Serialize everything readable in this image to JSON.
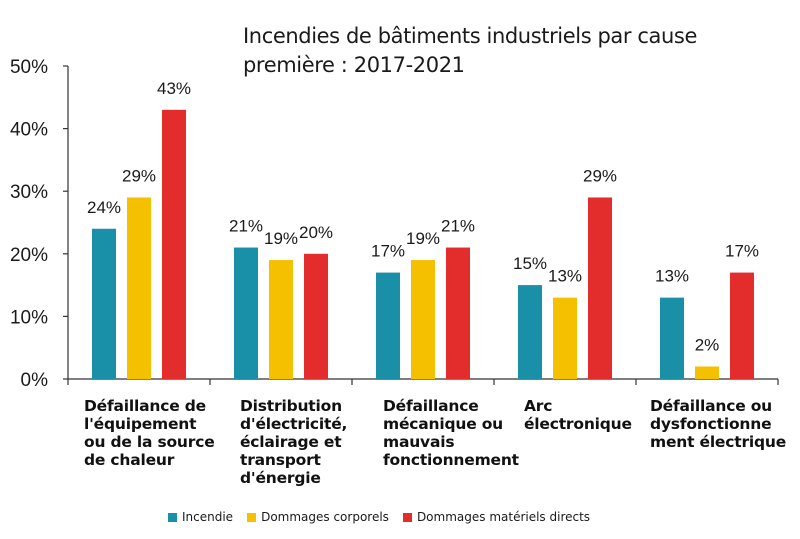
{
  "chart_data": {
    "type": "bar",
    "title": "Incendies de bâtiments industriels par cause première : 2017-2021",
    "categories": [
      "Défaillance de l'équipement ou de la source de chaleur",
      "Distribution d'électricité, éclairage et transport d'énergie",
      "Défaillance mécanique ou mauvais fonctionnement",
      "Arc électronique",
      "Défaillance ou dysfonctionnement électrique"
    ],
    "category_lines": [
      [
        "Défaillance de",
        "l'équipement",
        "ou de la source",
        "de chaleur"
      ],
      [
        "Distribution",
        "d'électricité,",
        "éclairage et",
        "transport",
        "d'énergie"
      ],
      [
        "Défaillance",
        "mécanique ou",
        "mauvais",
        "fonctionnement"
      ],
      [
        "Arc",
        "électronique"
      ],
      [
        "Défaillance ou",
        "dysfonctionne",
        "ment électrique"
      ]
    ],
    "series": [
      {
        "name": "Incendie",
        "color": "#1a8fa8",
        "values": [
          24,
          21,
          17,
          15,
          13
        ],
        "labels": [
          "24%",
          "21%",
          "17%",
          "15%",
          "13%"
        ]
      },
      {
        "name": "Dommages corporels",
        "color": "#f5c000",
        "values": [
          29,
          19,
          19,
          13,
          2
        ],
        "labels": [
          "29%",
          "19%",
          "19%",
          "13%",
          "2%"
        ]
      },
      {
        "name": "Dommages matériels directs",
        "color": "#e32d2d",
        "values": [
          43,
          20,
          21,
          29,
          17
        ],
        "labels": [
          "43%",
          "20%",
          "21%",
          "29%",
          "17%"
        ]
      }
    ],
    "yticks": [
      "0%",
      "10%",
      "20%",
      "30%",
      "40%",
      "50%"
    ],
    "ylim": [
      0,
      50
    ],
    "xlabel": "",
    "ylabel": "",
    "grid": false,
    "legend": "bottom"
  }
}
